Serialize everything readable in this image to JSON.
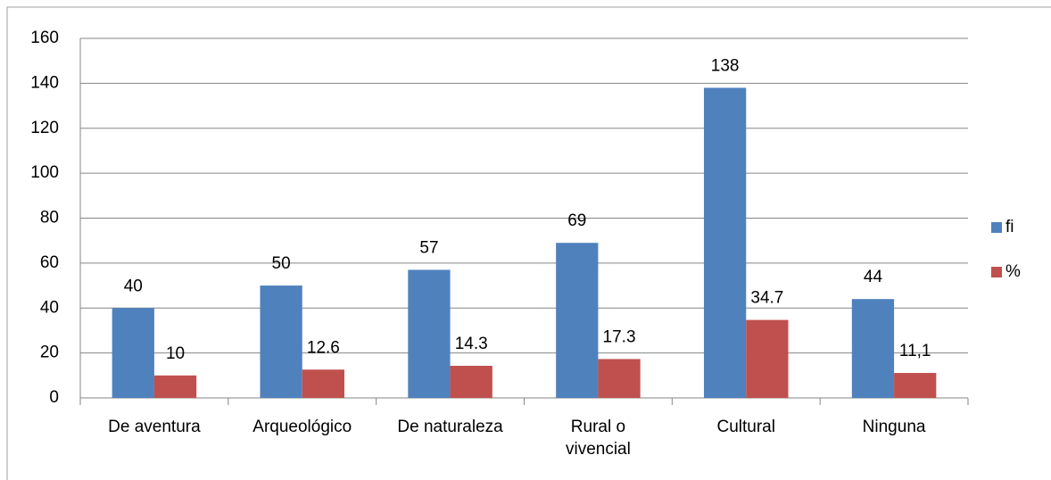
{
  "chart_data": {
    "type": "bar",
    "categories": [
      "De aventura",
      "Arqueológico",
      "De naturaleza",
      "Rural o\nvivencial",
      "Cultural",
      "Ninguna"
    ],
    "series": [
      {
        "name": "fi",
        "color": "#4f81bd",
        "values": [
          40,
          50,
          57,
          69,
          138,
          44
        ]
      },
      {
        "name": "%",
        "color": "#c0504d",
        "values": [
          10,
          12.6,
          14.3,
          17.3,
          34.7,
          11.1
        ],
        "value_labels": [
          "10",
          "12.6",
          "14.3",
          "17.3",
          "34.7",
          "11,1"
        ]
      }
    ],
    "ylim": [
      0,
      160
    ],
    "yticks": [
      0,
      20,
      40,
      60,
      80,
      100,
      120,
      140,
      160
    ],
    "grid": true,
    "legend": "right"
  }
}
